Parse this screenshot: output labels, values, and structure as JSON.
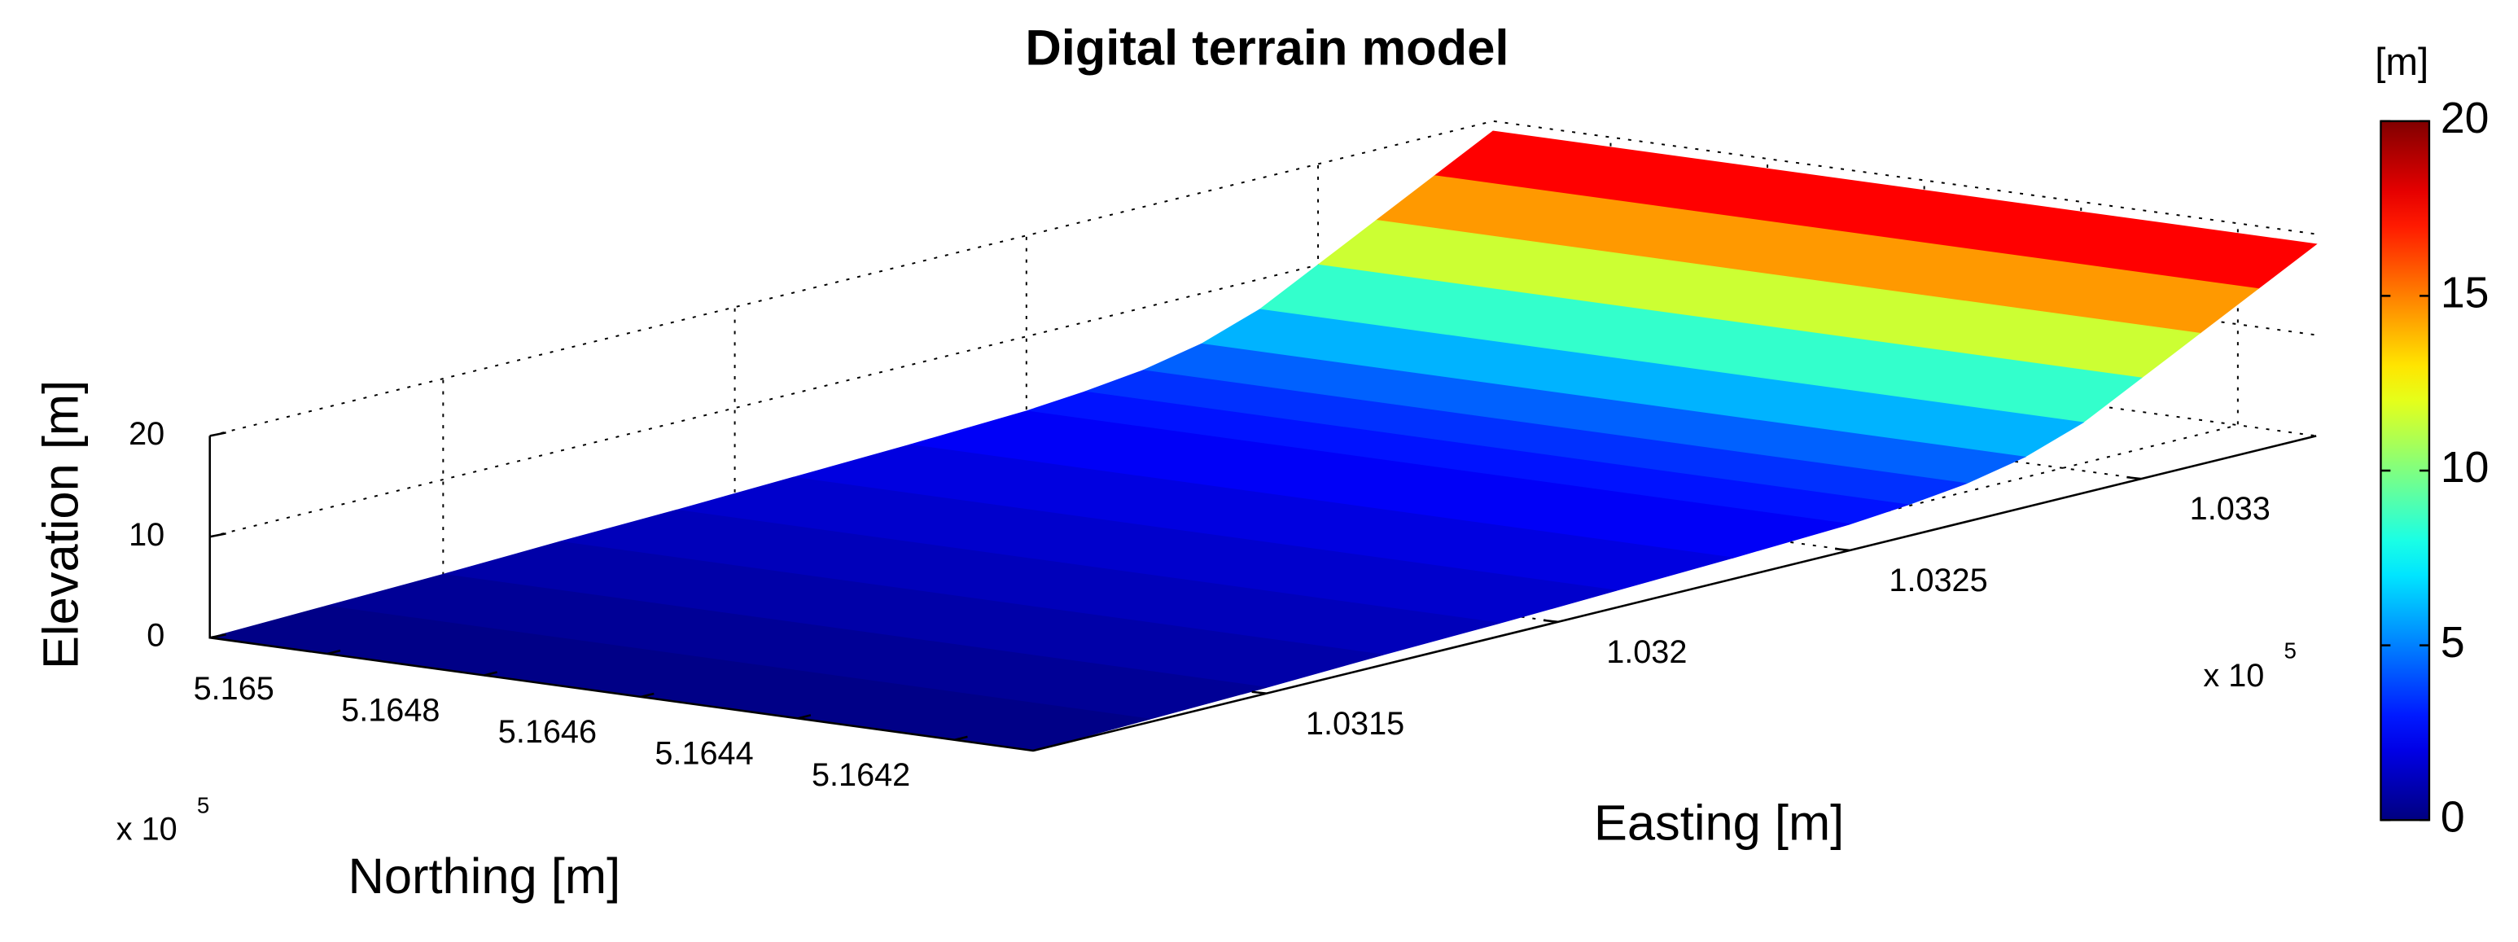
{
  "chart_data": {
    "type": "surface",
    "title": "Digital terrain model",
    "xlabel": "Northing [m]",
    "ylabel": "Easting [m]",
    "zlabel": "Elevation [m]",
    "x_exponent": {
      "base": "x 10",
      "power": 5
    },
    "y_exponent": {
      "base": "x 10",
      "power": 5
    },
    "xlim": [
      5.1641,
      5.16515
    ],
    "ylim": [
      1.0311,
      1.0333
    ],
    "zlim": [
      0,
      20
    ],
    "xticks": [
      5.1642,
      5.1644,
      5.1646,
      5.1648,
      5.165
    ],
    "yticks": [
      1.0315,
      1.032,
      1.0325,
      1.033
    ],
    "zticks": [
      0,
      10,
      20
    ],
    "grid": true,
    "series": [
      {
        "name": "Elevation",
        "y": [
          1.0311,
          1.0313,
          1.0315,
          1.0317,
          1.0319,
          1.0321,
          1.0323,
          1.0325,
          1.0326,
          1.0327,
          1.0328,
          1.0329,
          1.033,
          1.0331,
          1.0332,
          1.0333
        ],
        "values": [
          0,
          0.3,
          0.6,
          1,
          1.3,
          1.7,
          2.1,
          2.6,
          3.1,
          3.8,
          5,
          7,
          10,
          13,
          16,
          19
        ]
      }
    ],
    "colorbar": {
      "label": "[m]",
      "lim": [
        0,
        20
      ],
      "ticks": [
        0,
        5,
        10,
        15,
        20
      ]
    }
  }
}
